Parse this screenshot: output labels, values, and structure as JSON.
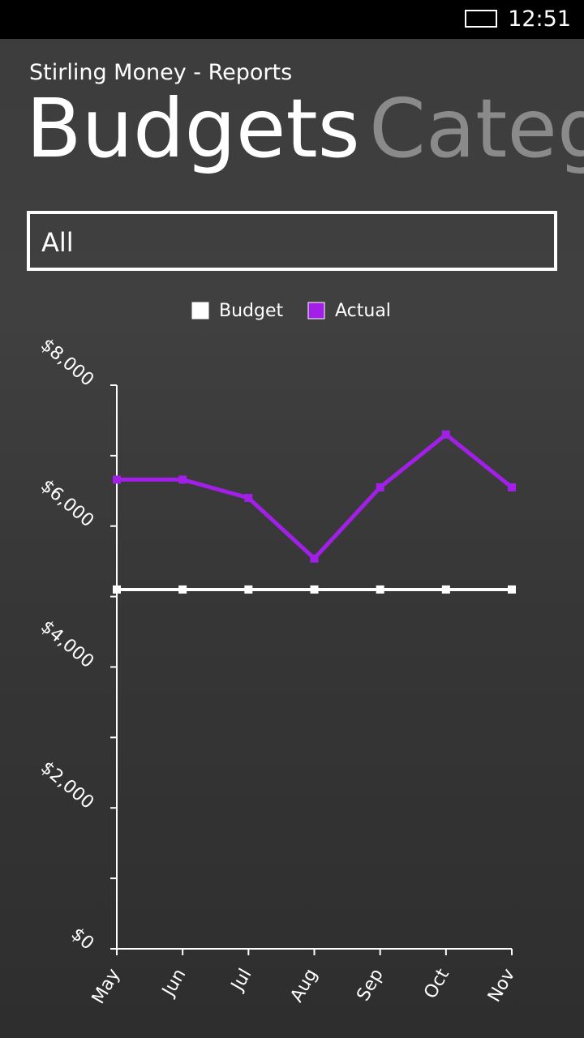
{
  "status_bar": {
    "time": "12:51"
  },
  "header": {
    "app_title": "Stirling Money - Reports",
    "pivots": [
      "Budgets",
      "Categ"
    ]
  },
  "filter": {
    "selected": "All"
  },
  "chart_data": {
    "type": "line",
    "categories": [
      "May",
      "Jun",
      "Jul",
      "Aug",
      "Sep",
      "Oct",
      "Nov"
    ],
    "series": [
      {
        "name": "Budget",
        "color": "#ffffff",
        "values": [
          5100,
          5100,
          5100,
          5100,
          5100,
          5100,
          5100
        ]
      },
      {
        "name": "Actual",
        "color": "#a21fe8",
        "values": [
          6660,
          6660,
          6400,
          5540,
          6550,
          7300,
          6550
        ]
      }
    ],
    "ylim": [
      0,
      8000
    ],
    "yticks": [
      {
        "value": 0,
        "label": "$0"
      },
      {
        "value": 2000,
        "label": "$2,000"
      },
      {
        "value": 4000,
        "label": "$4,000"
      },
      {
        "value": 6000,
        "label": "$6,000"
      },
      {
        "value": 8000,
        "label": "$8,000"
      }
    ],
    "yminor_ticks": [
      1000,
      3000,
      5000,
      7000
    ]
  }
}
